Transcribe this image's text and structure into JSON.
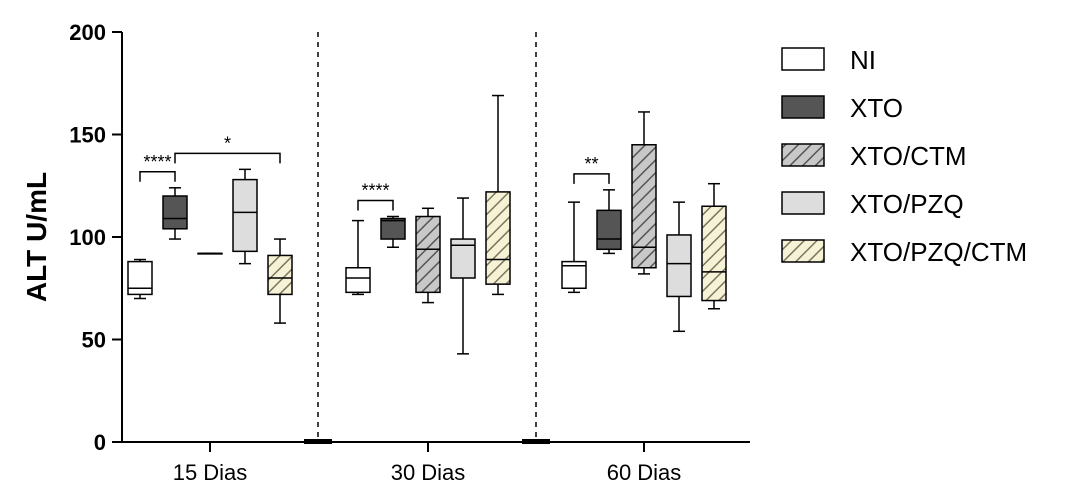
{
  "chart_data": {
    "type": "box",
    "ylabel": "ALT U/mL",
    "ylim": [
      0,
      200
    ],
    "yticks": [
      0,
      50,
      100,
      150,
      200
    ],
    "groups": [
      "15 Dias",
      "30 Dias",
      "60 Dias"
    ],
    "series": [
      {
        "name": "NI",
        "fill": "#ffffff",
        "pattern": "none"
      },
      {
        "name": "XTO",
        "fill": "#555555",
        "pattern": "none"
      },
      {
        "name": "XTO/CTM",
        "fill": "#b8b8b8",
        "pattern": "hatch"
      },
      {
        "name": "XTO/PZQ",
        "fill": "#dddddd",
        "pattern": "none"
      },
      {
        "name": "XTO/PZQ/CTM",
        "fill": "#f3efcf",
        "pattern": "hatch"
      }
    ],
    "boxes": [
      [
        {
          "min": 70,
          "q1": 72,
          "median": 75,
          "q3": 88,
          "max": 89
        },
        {
          "min": 99,
          "q1": 104,
          "median": 109,
          "q3": 120,
          "max": 124
        },
        {
          "min": 92,
          "q1": 92,
          "median": 92,
          "q3": 92,
          "max": 92
        },
        {
          "min": 87,
          "q1": 93,
          "median": 112,
          "q3": 128,
          "max": 133
        },
        {
          "min": 58,
          "q1": 72,
          "median": 80,
          "q3": 91,
          "max": 99
        }
      ],
      [
        {
          "min": 72,
          "q1": 73,
          "median": 80,
          "q3": 85,
          "max": 108
        },
        {
          "min": 95,
          "q1": 99,
          "median": 108,
          "q3": 109,
          "max": 110
        },
        {
          "min": 68,
          "q1": 73,
          "median": 94,
          "q3": 110,
          "max": 114
        },
        {
          "min": 43,
          "q1": 80,
          "median": 96,
          "q3": 99,
          "max": 119
        },
        {
          "min": 72,
          "q1": 77,
          "median": 89,
          "q3": 122,
          "max": 169
        }
      ],
      [
        {
          "min": 73,
          "q1": 75,
          "median": 86,
          "q3": 88,
          "max": 117
        },
        {
          "min": 92,
          "q1": 94,
          "median": 99,
          "q3": 113,
          "max": 123
        },
        {
          "min": 82,
          "q1": 85,
          "median": 95,
          "q3": 145,
          "max": 161
        },
        {
          "min": 54,
          "q1": 71,
          "median": 87,
          "q3": 101,
          "max": 117
        },
        {
          "min": 65,
          "q1": 69,
          "median": 83,
          "q3": 115,
          "max": 126
        }
      ]
    ],
    "significance": [
      {
        "group": 0,
        "from": 0,
        "to": 1,
        "label": "****"
      },
      {
        "group": 0,
        "from": 1,
        "to": 4,
        "label": "*"
      },
      {
        "group": 1,
        "from": 0,
        "to": 1,
        "label": "****"
      },
      {
        "group": 2,
        "from": 0,
        "to": 1,
        "label": "**"
      }
    ],
    "group_separators": "dashed",
    "legend_position": "right",
    "grid": false
  }
}
